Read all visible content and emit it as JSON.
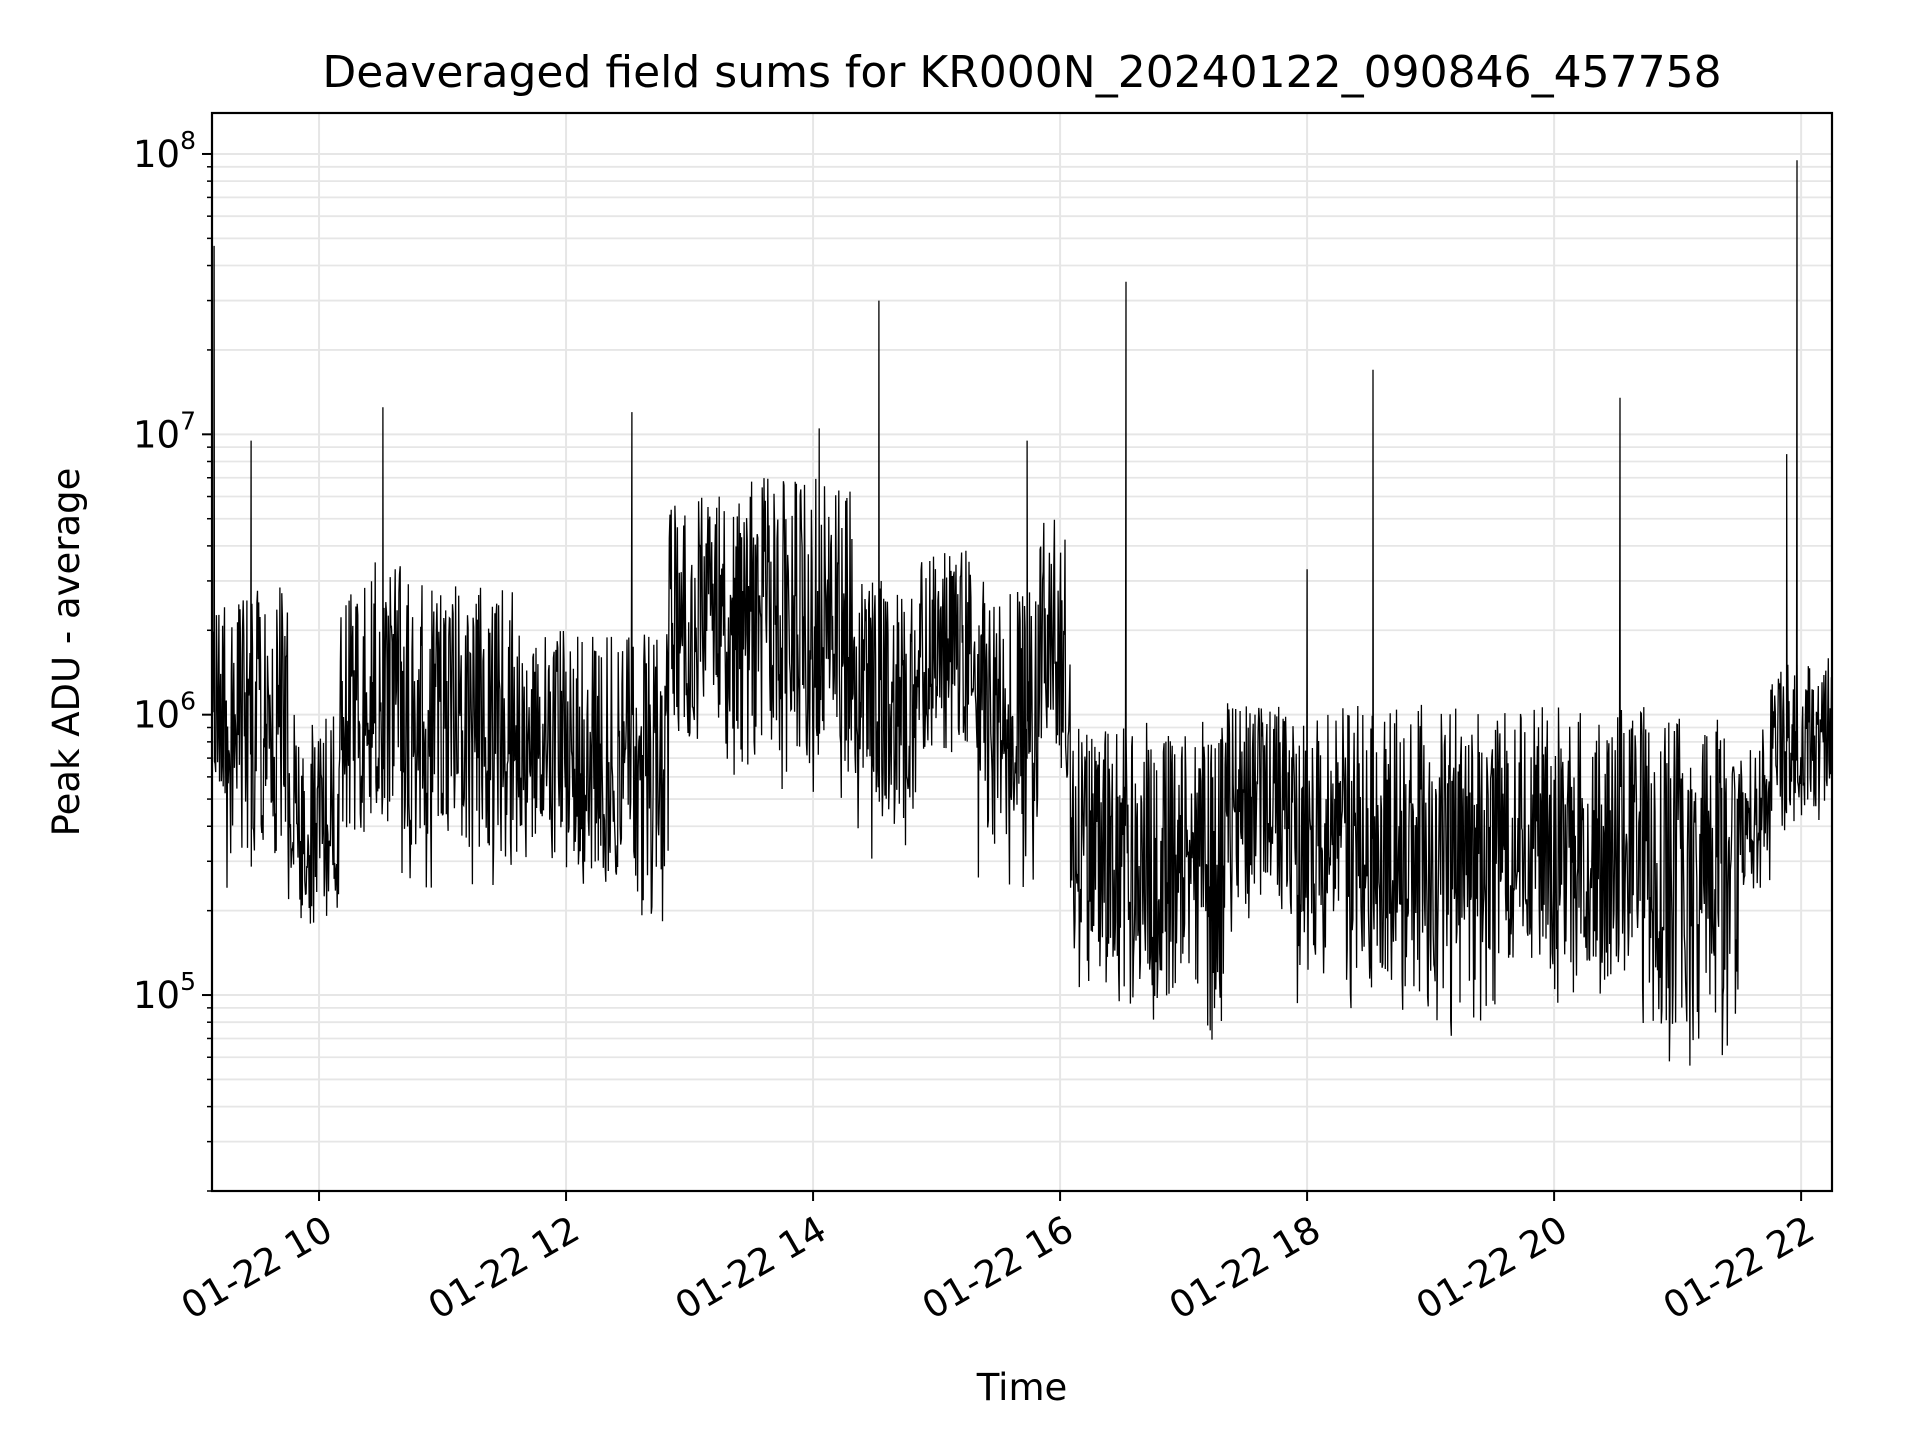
{
  "chart_data": {
    "type": "line",
    "title": "Deaveraged field sums for KR000N_20240122_090846_457758",
    "xlabel": "Time",
    "ylabel": "Peak ADU - average",
    "yscale": "log",
    "ylim": [
      20000,
      140000000
    ],
    "xlim": [
      "2024-01-22 09:08",
      "2024-01-22 22:15"
    ],
    "grid": true,
    "line_color": "#000000",
    "grid_color": "#e6e6e6",
    "x_ticks": [
      {
        "label": "01-22 10",
        "time": "2024-01-22 10:00"
      },
      {
        "label": "01-22 12",
        "time": "2024-01-22 12:00"
      },
      {
        "label": "01-22 14",
        "time": "2024-01-22 14:00"
      },
      {
        "label": "01-22 16",
        "time": "2024-01-22 16:00"
      },
      {
        "label": "01-22 18",
        "time": "2024-01-22 18:00"
      },
      {
        "label": "01-22 20",
        "time": "2024-01-22 20:00"
      },
      {
        "label": "01-22 22",
        "time": "2024-01-22 22:00"
      }
    ],
    "y_ticks": [
      {
        "base": "10",
        "exp": "5",
        "value": 100000
      },
      {
        "base": "10",
        "exp": "6",
        "value": 1000000
      },
      {
        "base": "10",
        "exp": "7",
        "value": 10000000
      },
      {
        "base": "10",
        "exp": "8",
        "value": 100000000
      }
    ],
    "segments": [
      {
        "start": "2024-01-22 09:08",
        "end": "2024-01-22 09:45",
        "low": 150000,
        "high": 3000000
      },
      {
        "start": "2024-01-22 09:45",
        "end": "2024-01-22 10:10",
        "low": 100000,
        "high": 1000000
      },
      {
        "start": "2024-01-22 10:10",
        "end": "2024-01-22 10:40",
        "low": 150000,
        "high": 3500000
      },
      {
        "start": "2024-01-22 10:40",
        "end": "2024-01-22 11:40",
        "low": 150000,
        "high": 3000000
      },
      {
        "start": "2024-01-22 11:40",
        "end": "2024-01-22 12:00",
        "low": 200000,
        "high": 2000000
      },
      {
        "start": "2024-01-22 12:00",
        "end": "2024-01-22 12:50",
        "low": 120000,
        "high": 2000000
      },
      {
        "start": "2024-01-22 12:50",
        "end": "2024-01-22 13:30",
        "low": 400000,
        "high": 6000000
      },
      {
        "start": "2024-01-22 13:30",
        "end": "2024-01-22 14:20",
        "low": 300000,
        "high": 7000000
      },
      {
        "start": "2024-01-22 14:20",
        "end": "2024-01-22 14:50",
        "low": 200000,
        "high": 3000000
      },
      {
        "start": "2024-01-22 14:50",
        "end": "2024-01-22 15:20",
        "low": 400000,
        "high": 4000000
      },
      {
        "start": "2024-01-22 15:20",
        "end": "2024-01-22 15:50",
        "low": 150000,
        "high": 3000000
      },
      {
        "start": "2024-01-22 15:50",
        "end": "2024-01-22 16:05",
        "low": 300000,
        "high": 5000000
      },
      {
        "start": "2024-01-22 16:05",
        "end": "2024-01-22 16:40",
        "low": 50000,
        "high": 900000
      },
      {
        "start": "2024-01-22 16:40",
        "end": "2024-01-22 17:20",
        "low": 40000,
        "high": 1000000
      },
      {
        "start": "2024-01-22 17:20",
        "end": "2024-01-22 17:55",
        "low": 100000,
        "high": 1100000
      },
      {
        "start": "2024-01-22 17:55",
        "end": "2024-01-22 18:30",
        "low": 60000,
        "high": 1100000
      },
      {
        "start": "2024-01-22 18:30",
        "end": "2024-01-22 19:40",
        "low": 45000,
        "high": 1100000
      },
      {
        "start": "2024-01-22 19:40",
        "end": "2024-01-22 20:10",
        "low": 60000,
        "high": 1100000
      },
      {
        "start": "2024-01-22 20:10",
        "end": "2024-01-22 20:50",
        "low": 45000,
        "high": 1100000
      },
      {
        "start": "2024-01-22 20:50",
        "end": "2024-01-22 21:30",
        "low": 32000,
        "high": 1000000
      },
      {
        "start": "2024-01-22 21:30",
        "end": "2024-01-22 21:45",
        "low": 150000,
        "high": 900000
      },
      {
        "start": "2024-01-22 21:45",
        "end": "2024-01-22 22:15",
        "low": 250000,
        "high": 1600000
      }
    ],
    "spikes": [
      {
        "time": "2024-01-22 09:09",
        "value": 47000000
      },
      {
        "time": "2024-01-22 09:27",
        "value": 9500000
      },
      {
        "time": "2024-01-22 10:31",
        "value": 12500000
      },
      {
        "time": "2024-01-22 12:32",
        "value": 12000000
      },
      {
        "time": "2024-01-22 14:32",
        "value": 30000000
      },
      {
        "time": "2024-01-22 14:03",
        "value": 10500000
      },
      {
        "time": "2024-01-22 15:44",
        "value": 9500000
      },
      {
        "time": "2024-01-22 16:32",
        "value": 35000000
      },
      {
        "time": "2024-01-22 18:32",
        "value": 17000000
      },
      {
        "time": "2024-01-22 20:32",
        "value": 13500000
      },
      {
        "time": "2024-01-22 21:53",
        "value": 8500000
      },
      {
        "time": "2024-01-22 21:58",
        "value": 95000000
      },
      {
        "time": "2024-01-22 17:60",
        "value": 3300000
      }
    ]
  }
}
